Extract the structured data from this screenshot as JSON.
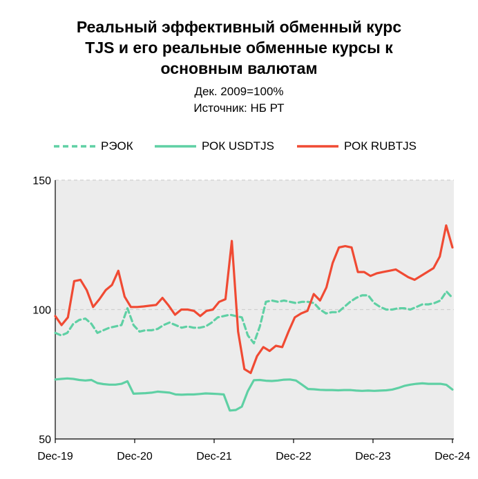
{
  "chart_data": {
    "type": "line",
    "title_lines": [
      "Реальный эффективный обменный курс",
      "TJS и его реальные обменные курсы к",
      "основным валютам"
    ],
    "subtitle_lines": [
      "Дек. 2009=100%",
      "Источник: НБ РТ"
    ],
    "x_ticks": [
      "Dec-19",
      "Dec-20",
      "Dec-21",
      "Dec-22",
      "Dec-23",
      "Dec-24"
    ],
    "y_ticks": [
      "50",
      "100",
      "150"
    ],
    "ylim": [
      50,
      150
    ],
    "x_range_months": [
      0,
      60
    ],
    "grid": "horizontal dashed",
    "legend_position": "top",
    "series": [
      {
        "name": "РЭОК",
        "color": "#5fd0a4",
        "dashed": true,
        "values": [
          91,
          90,
          91,
          94.5,
          96,
          96.5,
          94.5,
          91,
          92,
          93,
          93.5,
          94,
          100.5,
          94,
          91.5,
          92,
          92,
          92.5,
          94,
          95,
          94,
          93,
          93.5,
          93,
          93,
          93.5,
          95,
          97,
          97.5,
          98,
          97.5,
          97,
          90,
          87,
          93.5,
          103,
          103.5,
          103,
          103.5,
          103,
          102.5,
          103,
          103,
          102.5,
          100,
          98.5,
          99,
          99,
          101,
          103,
          104.5,
          105.5,
          105.5,
          102.5,
          101,
          100,
          100,
          100.5,
          100.5,
          100,
          101,
          102,
          102,
          102.5,
          103.5,
          107,
          104.5
        ]
      },
      {
        "name": "РОК USDTJS",
        "color": "#5fd0a4",
        "dashed": false,
        "values": [
          73,
          73.2,
          73.4,
          73.2,
          72.8,
          72.6,
          72.8,
          71.6,
          71.2,
          71,
          71,
          71.3,
          72.3,
          67.5,
          67.6,
          67.7,
          67.9,
          68.3,
          68.1,
          67.9,
          67.2,
          67.1,
          67.2,
          67.2,
          67.4,
          67.6,
          67.5,
          67.4,
          67.2,
          61,
          61.2,
          62.5,
          68.5,
          72.7,
          72.8,
          72.5,
          72.4,
          72.6,
          72.9,
          73,
          72.6,
          71,
          69.3,
          69.2,
          69,
          68.9,
          68.9,
          68.8,
          68.9,
          68.9,
          68.7,
          68.6,
          68.7,
          68.6,
          68.7,
          68.8,
          69.1,
          69.7,
          70.5,
          71,
          71.3,
          71.5,
          71.3,
          71.3,
          71.3,
          70.9,
          69.1
        ]
      },
      {
        "name": "РОК RUBTJS",
        "color": "#f04a33",
        "dashed": false,
        "values": [
          97.5,
          94,
          97,
          111,
          111.5,
          107.5,
          101,
          104,
          107.5,
          109.5,
          115,
          105,
          101,
          101,
          101.2,
          101.5,
          101.8,
          104.5,
          101.5,
          98,
          100,
          100,
          99.5,
          97.5,
          99.5,
          100,
          103,
          104,
          126.5,
          91.5,
          77,
          75.5,
          82,
          85.5,
          84,
          86,
          85.5,
          91.5,
          97,
          98.5,
          99.5,
          106,
          103.5,
          108.5,
          118,
          124,
          124.5,
          124,
          114.5,
          114.5,
          113,
          114,
          114.5,
          115,
          115.5,
          114,
          112.5,
          111.5,
          113,
          114.5,
          116,
          120.5,
          132.5,
          124
        ]
      }
    ]
  }
}
